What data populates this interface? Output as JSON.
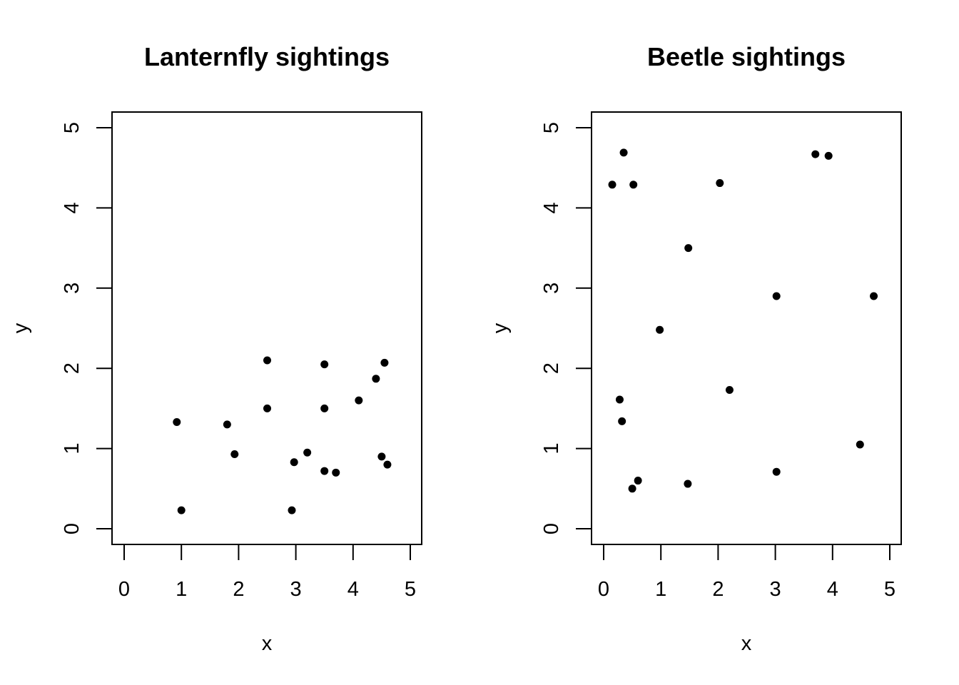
{
  "chart_data": [
    {
      "type": "scatter",
      "title": "Lanternfly sightings",
      "xlabel": "x",
      "ylabel": "y",
      "xlim": [
        0,
        5
      ],
      "ylim": [
        0,
        5
      ],
      "xticks": [
        "0",
        "1",
        "2",
        "3",
        "4",
        "5"
      ],
      "yticks": [
        "0",
        "1",
        "2",
        "3",
        "4",
        "5"
      ],
      "grid": false,
      "point_color": "#000000",
      "points": [
        {
          "x": 0.92,
          "y": 1.33
        },
        {
          "x": 1.0,
          "y": 0.23
        },
        {
          "x": 1.8,
          "y": 1.3
        },
        {
          "x": 1.93,
          "y": 0.93
        },
        {
          "x": 2.5,
          "y": 2.1
        },
        {
          "x": 2.5,
          "y": 1.5
        },
        {
          "x": 2.93,
          "y": 0.23
        },
        {
          "x": 2.97,
          "y": 0.83
        },
        {
          "x": 3.2,
          "y": 0.95
        },
        {
          "x": 3.5,
          "y": 2.05
        },
        {
          "x": 3.5,
          "y": 1.5
        },
        {
          "x": 3.5,
          "y": 0.72
        },
        {
          "x": 3.7,
          "y": 0.7
        },
        {
          "x": 4.1,
          "y": 1.6
        },
        {
          "x": 4.4,
          "y": 1.87
        },
        {
          "x": 4.5,
          "y": 0.9
        },
        {
          "x": 4.55,
          "y": 2.07
        },
        {
          "x": 4.6,
          "y": 0.8
        }
      ]
    },
    {
      "type": "scatter",
      "title": "Beetle sightings",
      "xlabel": "x",
      "ylabel": "y",
      "xlim": [
        0,
        5
      ],
      "ylim": [
        0,
        5
      ],
      "xticks": [
        "0",
        "1",
        "2",
        "3",
        "4",
        "5"
      ],
      "yticks": [
        "0",
        "1",
        "2",
        "3",
        "4",
        "5"
      ],
      "grid": false,
      "point_color": "#000000",
      "points": [
        {
          "x": 0.15,
          "y": 4.29
        },
        {
          "x": 0.35,
          "y": 4.69
        },
        {
          "x": 0.52,
          "y": 4.29
        },
        {
          "x": 0.28,
          "y": 1.61
        },
        {
          "x": 0.32,
          "y": 1.34
        },
        {
          "x": 0.5,
          "y": 0.5
        },
        {
          "x": 0.6,
          "y": 0.6
        },
        {
          "x": 0.98,
          "y": 2.48
        },
        {
          "x": 1.48,
          "y": 3.5
        },
        {
          "x": 1.47,
          "y": 0.56
        },
        {
          "x": 2.03,
          "y": 4.31
        },
        {
          "x": 2.2,
          "y": 1.73
        },
        {
          "x": 3.02,
          "y": 2.9
        },
        {
          "x": 3.02,
          "y": 0.71
        },
        {
          "x": 3.7,
          "y": 4.67
        },
        {
          "x": 3.93,
          "y": 4.65
        },
        {
          "x": 4.48,
          "y": 1.05
        },
        {
          "x": 4.72,
          "y": 2.9
        }
      ]
    }
  ]
}
